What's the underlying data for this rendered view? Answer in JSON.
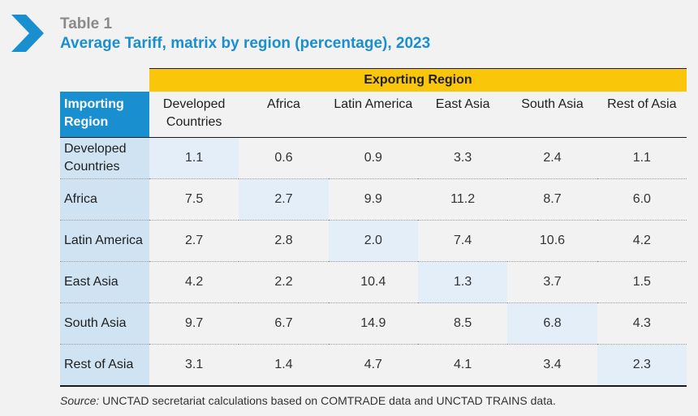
{
  "header": {
    "label": "Table 1",
    "title": "Average Tariff, matrix by region (percentage), 2023"
  },
  "table": {
    "exporting_label": "Exporting Region",
    "importing_label": "Importing Region",
    "columns": [
      "Developed Countries",
      "Africa",
      "Latin America",
      "East Asia",
      "South Asia",
      "Rest of Asia"
    ],
    "rows": [
      {
        "label": "Developed Countries",
        "values": [
          "1.1",
          "0.6",
          "0.9",
          "3.3",
          "2.4",
          "1.1"
        ]
      },
      {
        "label": "Africa",
        "values": [
          "7.5",
          "2.7",
          "9.9",
          "11.2",
          "8.7",
          "6.0"
        ]
      },
      {
        "label": "Latin America",
        "values": [
          "2.7",
          "2.8",
          "2.0",
          "7.4",
          "10.6",
          "4.2"
        ]
      },
      {
        "label": "East Asia",
        "values": [
          "4.2",
          "2.2",
          "10.4",
          "1.3",
          "3.7",
          "1.5"
        ]
      },
      {
        "label": "South Asia",
        "values": [
          "9.7",
          "6.7",
          "14.9",
          "8.5",
          "6.8",
          "4.3"
        ]
      },
      {
        "label": "Rest of Asia",
        "values": [
          "3.1",
          "1.4",
          "4.7",
          "4.1",
          "3.4",
          "2.3"
        ]
      }
    ]
  },
  "footnote": {
    "source_label": "Source:",
    "source_text": " UNCTAD secretariat calculations based on COMTRADE data and UNCTAD TRAINS data."
  },
  "colors": {
    "accent_blue": "#1a8fd0",
    "header_yellow": "#f9c60a",
    "row_label_blue": "#cfe3f3",
    "diagonal_highlight": "#e4eef8"
  },
  "icons": {
    "marker": "chevron-right-icon"
  }
}
